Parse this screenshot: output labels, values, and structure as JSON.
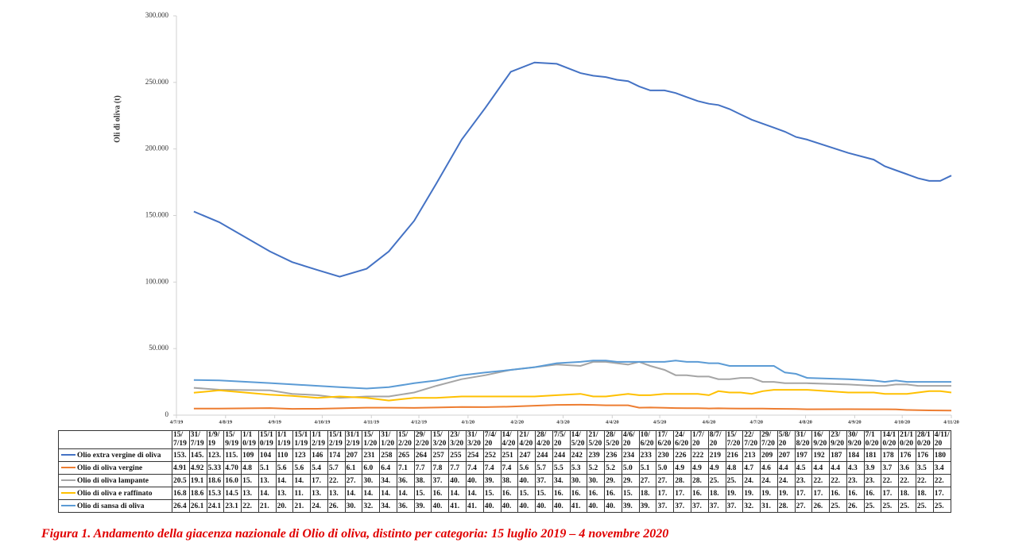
{
  "chart_data": {
    "type": "line",
    "y_label": "Oli di oliva (t)",
    "caption": "Figura 1. Andamento della giacenza nazionale di Olio di oliva, distinto per categoria: 15 luglio 2019 – 4 novembre 2020",
    "x": [
      "15/7/19",
      "31/7/19",
      "1/9/19",
      "15/9/19",
      "1/10/19",
      "15/10/19",
      "1/11/19",
      "15/11/19",
      "1/12/19",
      "15/12/19",
      "31/12/19",
      "15/1/20",
      "31/1/20",
      "15/2/20",
      "29/2/20",
      "15/3/20",
      "23/3/20",
      "31/3/20",
      "7/4/20",
      "14/4/20",
      "21/4/20",
      "28/4/20",
      "7/5/20",
      "14/5/20",
      "21/5/20",
      "28/5/20",
      "4/6/20",
      "10/6/20",
      "17/6/20",
      "24/6/20",
      "1/7/20",
      "8/7/20",
      "15/7/20",
      "22/7/20",
      "29/7/20",
      "5/8/20",
      "31/8/20",
      "16/9/20",
      "23/9/20",
      "30/9/20",
      "7/10/20",
      "14/10/20",
      "21/10/20",
      "28/10/20",
      "4/11/20"
    ],
    "xlim": [
      "4/7/19",
      "4/11/20"
    ],
    "xticks": [
      "4/7/19",
      "4/8/19",
      "4/9/19",
      "4/10/19",
      "4/11/19",
      "4/12/19",
      "4/1/20",
      "4/2/20",
      "4/3/20",
      "4/4/20",
      "4/5/20",
      "4/6/20",
      "4/7/20",
      "4/8/20",
      "4/9/20",
      "4/10/20",
      "4/11/20"
    ],
    "ylim": [
      0,
      300000
    ],
    "yticks": [
      0,
      {
        "value": 50000,
        "label": "50.000"
      },
      {
        "value": 100000,
        "label": "100.000"
      },
      {
        "value": 150000,
        "label": "150.000"
      },
      {
        "value": 200000,
        "label": "200.000"
      },
      {
        "value": 250000,
        "label": "250.000"
      },
      {
        "value": 300000,
        "label": "300.000"
      }
    ],
    "grid": false,
    "series": [
      {
        "name": "Olio extra vergine di oliva",
        "color": "#4472c4",
        "values": [
          153000,
          145000,
          123000,
          115000,
          109000,
          104000,
          110000,
          123000,
          146000,
          174000,
          207000,
          231000,
          258000,
          265000,
          264000,
          257000,
          255000,
          254000,
          252000,
          251000,
          247000,
          244000,
          244000,
          242000,
          239000,
          236000,
          234000,
          233000,
          230000,
          226000,
          222000,
          219000,
          216000,
          213000,
          209000,
          207000,
          197000,
          192000,
          187000,
          184000,
          181000,
          178000,
          176000,
          176000,
          180000
        ],
        "value_labels": [
          "153.",
          "145.",
          "123.",
          "115.",
          "109",
          "104",
          "110",
          "123",
          "146",
          "174",
          "207",
          "231",
          "258",
          "265",
          "264",
          "257",
          "255",
          "254",
          "252",
          "251",
          "247",
          "244",
          "244",
          "242",
          "239",
          "236",
          "234",
          "233",
          "230",
          "226",
          "222",
          "219",
          "216",
          "213",
          "209",
          "207",
          "197",
          "192",
          "187",
          "184",
          "181",
          "178",
          "176",
          "176",
          "180"
        ]
      },
      {
        "name": "Olio di oliva vergine",
        "color": "#ed7d31",
        "values": [
          4910,
          4920,
          5330,
          4700,
          4800,
          5100,
          5600,
          5600,
          5400,
          5700,
          6100,
          6000,
          6400,
          7100,
          7700,
          7800,
          7700,
          7400,
          7400,
          7400,
          5600,
          5700,
          5500,
          5300,
          5200,
          5200,
          5000,
          5100,
          5000,
          4900,
          4900,
          4900,
          4800,
          4700,
          4600,
          4400,
          4500,
          4400,
          4400,
          4300,
          3900,
          3700,
          3600,
          3500,
          3400
        ],
        "value_labels": [
          "4.91",
          "4.92",
          "5.33",
          "4.70",
          "4.8",
          "5.1",
          "5.6",
          "5.6",
          "5.4",
          "5.7",
          "6.1",
          "6.0",
          "6.4",
          "7.1",
          "7.7",
          "7.8",
          "7.7",
          "7.4",
          "7.4",
          "7.4",
          "5.6",
          "5.7",
          "5.5",
          "5.3",
          "5.2",
          "5.2",
          "5.0",
          "5.1",
          "5.0",
          "4.9",
          "4.9",
          "4.9",
          "4.8",
          "4.7",
          "4.6",
          "4.4",
          "4.5",
          "4.4",
          "4.4",
          "4.3",
          "3.9",
          "3.7",
          "3.6",
          "3.5",
          "3.4"
        ]
      },
      {
        "name": "Olio di oliva lampante",
        "color": "#a5a5a5",
        "values": [
          20500,
          19100,
          18600,
          16000,
          15000,
          13000,
          14000,
          14000,
          17000,
          22000,
          27000,
          30000,
          34000,
          36000,
          38000,
          37000,
          40000,
          40000,
          39000,
          38000,
          40000,
          37000,
          34000,
          30000,
          30000,
          29000,
          29000,
          27000,
          27000,
          28000,
          28000,
          25000,
          25000,
          24000,
          24000,
          24000,
          23000,
          22000,
          22000,
          23000,
          23000,
          22000,
          22000,
          22000,
          22000
        ],
        "value_labels": [
          "20.5",
          "19.1",
          "18.6",
          "16.0",
          "15.",
          "13.",
          "14.",
          "14.",
          "17.",
          "22.",
          "27.",
          "30.",
          "34.",
          "36.",
          "38.",
          "37.",
          "40.",
          "40.",
          "39.",
          "38.",
          "40.",
          "37.",
          "34.",
          "30.",
          "30.",
          "29.",
          "29.",
          "27.",
          "27.",
          "28.",
          "28.",
          "25.",
          "25.",
          "24.",
          "24.",
          "24.",
          "23.",
          "22.",
          "22.",
          "23.",
          "23.",
          "22.",
          "22.",
          "22.",
          "22."
        ]
      },
      {
        "name": "Olio di oliva e raffinato",
        "color": "#ffc000",
        "values": [
          16800,
          18600,
          15300,
          14500,
          13000,
          14000,
          13000,
          11000,
          13000,
          13000,
          14000,
          14000,
          14000,
          14000,
          15000,
          16000,
          14000,
          14000,
          15000,
          16000,
          15000,
          15000,
          16000,
          16000,
          16000,
          16000,
          15000,
          18000,
          17000,
          17000,
          16000,
          18000,
          19000,
          19000,
          19000,
          19000,
          17000,
          17000,
          16000,
          16000,
          16000,
          17000,
          18000,
          18000,
          17000
        ],
        "value_labels": [
          "16.8",
          "18.6",
          "15.3",
          "14.5",
          "13.",
          "14.",
          "13.",
          "11.",
          "13.",
          "13.",
          "14.",
          "14.",
          "14.",
          "14.",
          "15.",
          "16.",
          "14.",
          "14.",
          "15.",
          "16.",
          "15.",
          "15.",
          "16.",
          "16.",
          "16.",
          "16.",
          "15.",
          "18.",
          "17.",
          "17.",
          "16.",
          "18.",
          "19.",
          "19.",
          "19.",
          "19.",
          "17.",
          "17.",
          "16.",
          "16.",
          "16.",
          "17.",
          "18.",
          "18.",
          "17."
        ]
      },
      {
        "name": "Olio di sansa di oliva",
        "color": "#5b9bd5",
        "values": [
          26400,
          26100,
          24100,
          23100,
          22000,
          21000,
          20000,
          21000,
          24000,
          26000,
          30000,
          32000,
          34000,
          36000,
          39000,
          40000,
          41000,
          41000,
          40000,
          40000,
          40000,
          40000,
          40000,
          41000,
          40000,
          40000,
          39000,
          39000,
          37000,
          37000,
          37000,
          37000,
          37000,
          32000,
          31000,
          28000,
          27000,
          26000,
          25000,
          26000,
          25000,
          25000,
          25000,
          25000,
          25000
        ],
        "value_labels": [
          "26.4",
          "26.1",
          "24.1",
          "23.1",
          "22.",
          "21.",
          "20.",
          "21.",
          "24.",
          "26.",
          "30.",
          "32.",
          "34.",
          "36.",
          "39.",
          "40.",
          "41.",
          "41.",
          "40.",
          "40.",
          "40.",
          "40.",
          "40.",
          "41.",
          "40.",
          "40.",
          "39.",
          "39.",
          "37.",
          "37.",
          "37.",
          "37.",
          "37.",
          "32.",
          "31.",
          "28.",
          "27.",
          "26.",
          "25.",
          "26.",
          "25.",
          "25.",
          "25.",
          "25.",
          "25."
        ]
      }
    ]
  }
}
